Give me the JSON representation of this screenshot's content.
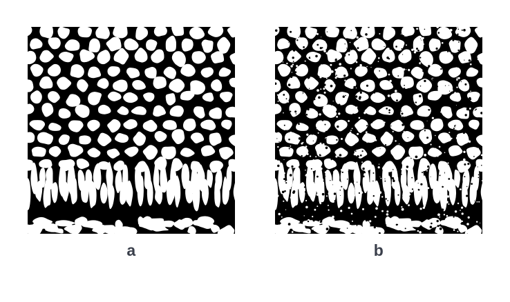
{
  "panels": [
    {
      "id": "a",
      "label": "a",
      "description_key": "binary-texture-smooth"
    },
    {
      "id": "b",
      "label": "b",
      "description_key": "binary-texture-noisy"
    }
  ],
  "colors": {
    "foreground": "#ffffff",
    "background": "#000000",
    "caption": "#3a3f4b"
  }
}
